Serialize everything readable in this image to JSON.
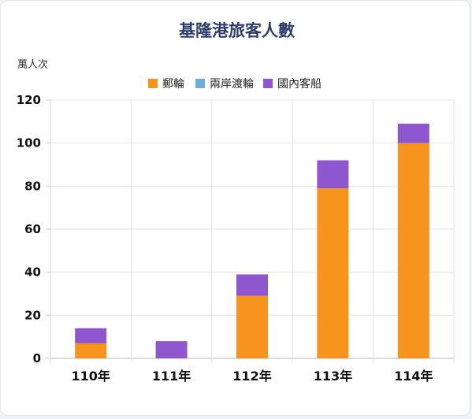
{
  "chart_data": {
    "type": "bar",
    "stacked": true,
    "title": "基隆港旅客人數",
    "ylabel": "萬人次",
    "xlabel": "",
    "categories": [
      "110年",
      "111年",
      "112年",
      "113年",
      "114年"
    ],
    "series": [
      {
        "name": "郵輪",
        "color": "#f7941d",
        "values": [
          7,
          0,
          29,
          79,
          100
        ]
      },
      {
        "name": "兩岸渡輪",
        "color": "#6baed6",
        "values": [
          0,
          0,
          0,
          0,
          0
        ]
      },
      {
        "name": "國內客船",
        "color": "#8e56cf",
        "values": [
          7,
          8,
          10,
          13,
          9
        ]
      }
    ],
    "ylim": [
      0,
      120
    ],
    "yticks": [
      0,
      20,
      40,
      60,
      80,
      100,
      120
    ],
    "grid": true,
    "legend_position": "top"
  }
}
